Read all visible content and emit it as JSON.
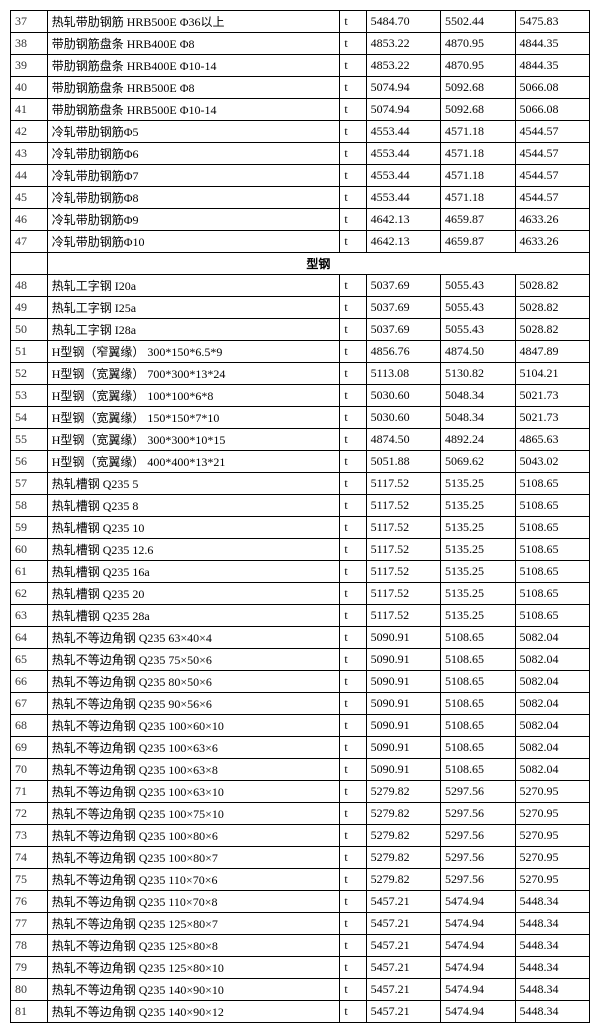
{
  "section_label": "型钢",
  "columns": [
    "num",
    "desc",
    "unit",
    "v1",
    "v2",
    "v3"
  ],
  "rows": [
    {
      "num": "37",
      "desc": "热轧带肋钢筋 HRB500E Φ36以上",
      "unit": "t",
      "v1": "5484.70",
      "v2": "5502.44",
      "v3": "5475.83"
    },
    {
      "num": "38",
      "desc": "带肋钢筋盘条 HRB400E Φ8",
      "unit": "t",
      "v1": "4853.22",
      "v2": "4870.95",
      "v3": "4844.35"
    },
    {
      "num": "39",
      "desc": "带肋钢筋盘条 HRB400E Φ10-14",
      "unit": "t",
      "v1": "4853.22",
      "v2": "4870.95",
      "v3": "4844.35"
    },
    {
      "num": "40",
      "desc": "带肋钢筋盘条 HRB500E Φ8",
      "unit": "t",
      "v1": "5074.94",
      "v2": "5092.68",
      "v3": "5066.08"
    },
    {
      "num": "41",
      "desc": "带肋钢筋盘条 HRB500E Φ10-14",
      "unit": "t",
      "v1": "5074.94",
      "v2": "5092.68",
      "v3": "5066.08"
    },
    {
      "num": "42",
      "desc": "冷轧带肋钢筋Φ5",
      "unit": "t",
      "v1": "4553.44",
      "v2": "4571.18",
      "v3": "4544.57"
    },
    {
      "num": "43",
      "desc": "冷轧带肋钢筋Φ6",
      "unit": "t",
      "v1": "4553.44",
      "v2": "4571.18",
      "v3": "4544.57"
    },
    {
      "num": "44",
      "desc": "冷轧带肋钢筋Φ7",
      "unit": "t",
      "v1": "4553.44",
      "v2": "4571.18",
      "v3": "4544.57"
    },
    {
      "num": "45",
      "desc": "冷轧带肋钢筋Φ8",
      "unit": "t",
      "v1": "4553.44",
      "v2": "4571.18",
      "v3": "4544.57"
    },
    {
      "num": "46",
      "desc": "冷轧带肋钢筋Φ9",
      "unit": "t",
      "v1": "4642.13",
      "v2": "4659.87",
      "v3": "4633.26"
    },
    {
      "num": "47",
      "desc": "冷轧带肋钢筋Φ10",
      "unit": "t",
      "v1": "4642.13",
      "v2": "4659.87",
      "v3": "4633.26"
    },
    {
      "section": true
    },
    {
      "num": "48",
      "desc": "热轧工字钢 I20a",
      "unit": "t",
      "v1": "5037.69",
      "v2": "5055.43",
      "v3": "5028.82"
    },
    {
      "num": "49",
      "desc": "热轧工字钢 I25a",
      "unit": "t",
      "v1": "5037.69",
      "v2": "5055.43",
      "v3": "5028.82"
    },
    {
      "num": "50",
      "desc": "热轧工字钢 I28a",
      "unit": "t",
      "v1": "5037.69",
      "v2": "5055.43",
      "v3": "5028.82"
    },
    {
      "num": "51",
      "desc": "H型钢（窄翼缘） 300*150*6.5*9",
      "unit": "t",
      "v1": "4856.76",
      "v2": "4874.50",
      "v3": "4847.89"
    },
    {
      "num": "52",
      "desc": "H型钢（宽翼缘） 700*300*13*24",
      "unit": "t",
      "v1": "5113.08",
      "v2": "5130.82",
      "v3": "5104.21"
    },
    {
      "num": "53",
      "desc": "H型钢（宽翼缘） 100*100*6*8",
      "unit": "t",
      "v1": "5030.60",
      "v2": "5048.34",
      "v3": "5021.73"
    },
    {
      "num": "54",
      "desc": "H型钢（宽翼缘） 150*150*7*10",
      "unit": "t",
      "v1": "5030.60",
      "v2": "5048.34",
      "v3": "5021.73"
    },
    {
      "num": "55",
      "desc": "H型钢（宽翼缘） 300*300*10*15",
      "unit": "t",
      "v1": "4874.50",
      "v2": "4892.24",
      "v3": "4865.63"
    },
    {
      "num": "56",
      "desc": "H型钢（宽翼缘） 400*400*13*21",
      "unit": "t",
      "v1": "5051.88",
      "v2": "5069.62",
      "v3": "5043.02"
    },
    {
      "num": "57",
      "desc": "热轧槽钢 Q235 5",
      "unit": "t",
      "v1": "5117.52",
      "v2": "5135.25",
      "v3": "5108.65"
    },
    {
      "num": "58",
      "desc": "热轧槽钢 Q235 8",
      "unit": "t",
      "v1": "5117.52",
      "v2": "5135.25",
      "v3": "5108.65"
    },
    {
      "num": "59",
      "desc": "热轧槽钢 Q235 10",
      "unit": "t",
      "v1": "5117.52",
      "v2": "5135.25",
      "v3": "5108.65"
    },
    {
      "num": "60",
      "desc": "热轧槽钢 Q235 12.6",
      "unit": "t",
      "v1": "5117.52",
      "v2": "5135.25",
      "v3": "5108.65"
    },
    {
      "num": "61",
      "desc": "热轧槽钢 Q235 16a",
      "unit": "t",
      "v1": "5117.52",
      "v2": "5135.25",
      "v3": "5108.65"
    },
    {
      "num": "62",
      "desc": "热轧槽钢 Q235 20",
      "unit": "t",
      "v1": "5117.52",
      "v2": "5135.25",
      "v3": "5108.65"
    },
    {
      "num": "63",
      "desc": "热轧槽钢 Q235 28a",
      "unit": "t",
      "v1": "5117.52",
      "v2": "5135.25",
      "v3": "5108.65"
    },
    {
      "num": "64",
      "desc": "热轧不等边角钢 Q235 63×40×4",
      "unit": "t",
      "v1": "5090.91",
      "v2": "5108.65",
      "v3": "5082.04"
    },
    {
      "num": "65",
      "desc": "热轧不等边角钢 Q235 75×50×6",
      "unit": "t",
      "v1": "5090.91",
      "v2": "5108.65",
      "v3": "5082.04"
    },
    {
      "num": "66",
      "desc": "热轧不等边角钢 Q235 80×50×6",
      "unit": "t",
      "v1": "5090.91",
      "v2": "5108.65",
      "v3": "5082.04"
    },
    {
      "num": "67",
      "desc": "热轧不等边角钢 Q235 90×56×6",
      "unit": "t",
      "v1": "5090.91",
      "v2": "5108.65",
      "v3": "5082.04"
    },
    {
      "num": "68",
      "desc": "热轧不等边角钢 Q235 100×60×10",
      "unit": "t",
      "v1": "5090.91",
      "v2": "5108.65",
      "v3": "5082.04"
    },
    {
      "num": "69",
      "desc": "热轧不等边角钢 Q235 100×63×6",
      "unit": "t",
      "v1": "5090.91",
      "v2": "5108.65",
      "v3": "5082.04"
    },
    {
      "num": "70",
      "desc": "热轧不等边角钢 Q235 100×63×8",
      "unit": "t",
      "v1": "5090.91",
      "v2": "5108.65",
      "v3": "5082.04"
    },
    {
      "num": "71",
      "desc": "热轧不等边角钢 Q235 100×63×10",
      "unit": "t",
      "v1": "5279.82",
      "v2": "5297.56",
      "v3": "5270.95"
    },
    {
      "num": "72",
      "desc": "热轧不等边角钢 Q235 100×75×10",
      "unit": "t",
      "v1": "5279.82",
      "v2": "5297.56",
      "v3": "5270.95"
    },
    {
      "num": "73",
      "desc": "热轧不等边角钢 Q235 100×80×6",
      "unit": "t",
      "v1": "5279.82",
      "v2": "5297.56",
      "v3": "5270.95"
    },
    {
      "num": "74",
      "desc": "热轧不等边角钢 Q235 100×80×7",
      "unit": "t",
      "v1": "5279.82",
      "v2": "5297.56",
      "v3": "5270.95"
    },
    {
      "num": "75",
      "desc": "热轧不等边角钢 Q235 110×70×6",
      "unit": "t",
      "v1": "5279.82",
      "v2": "5297.56",
      "v3": "5270.95"
    },
    {
      "num": "76",
      "desc": "热轧不等边角钢 Q235 110×70×8",
      "unit": "t",
      "v1": "5457.21",
      "v2": "5474.94",
      "v3": "5448.34"
    },
    {
      "num": "77",
      "desc": "热轧不等边角钢 Q235 125×80×7",
      "unit": "t",
      "v1": "5457.21",
      "v2": "5474.94",
      "v3": "5448.34"
    },
    {
      "num": "78",
      "desc": "热轧不等边角钢 Q235 125×80×8",
      "unit": "t",
      "v1": "5457.21",
      "v2": "5474.94",
      "v3": "5448.34"
    },
    {
      "num": "79",
      "desc": "热轧不等边角钢 Q235 125×80×10",
      "unit": "t",
      "v1": "5457.21",
      "v2": "5474.94",
      "v3": "5448.34"
    },
    {
      "num": "80",
      "desc": "热轧不等边角钢 Q235 140×90×10",
      "unit": "t",
      "v1": "5457.21",
      "v2": "5474.94",
      "v3": "5448.34"
    },
    {
      "num": "81",
      "desc": "热轧不等边角钢 Q235 140×90×12",
      "unit": "t",
      "v1": "5457.21",
      "v2": "5474.94",
      "v3": "5448.34"
    }
  ]
}
